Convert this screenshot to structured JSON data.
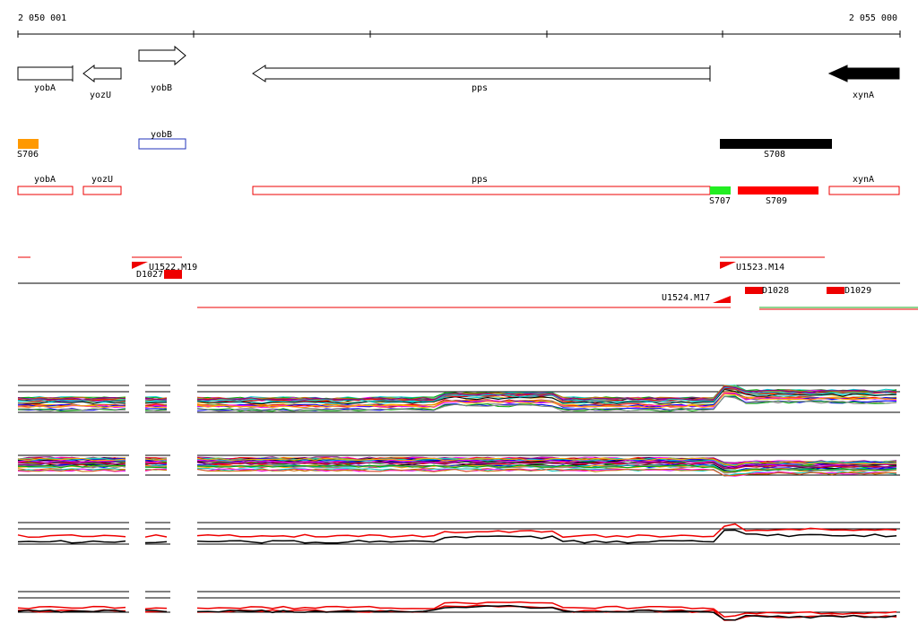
{
  "ruler": {
    "start": "2 050 001",
    "end": "2 055 000"
  },
  "genes": [
    "yobA",
    "yozU",
    "yobB",
    "pps",
    "xynA"
  ],
  "regions_top": [
    "S706",
    "yobB",
    "S708"
  ],
  "regions_bottom": [
    "yobA",
    "yozU",
    "pps",
    "S707",
    "S709",
    "xynA"
  ],
  "probes": [
    "U1522.M19",
    "D1027",
    "U1523.M14",
    "U1524.M17",
    "D1028",
    "D1029"
  ]
}
